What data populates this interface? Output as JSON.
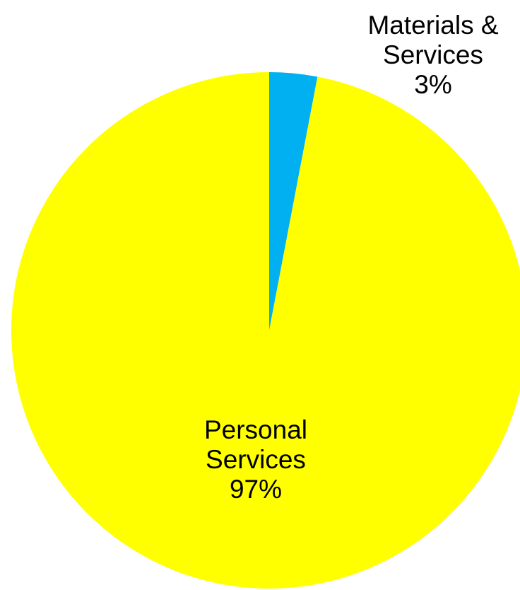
{
  "chart_data": {
    "type": "pie",
    "slices": [
      {
        "name": "Personal Services",
        "label_lines": [
          "Personal",
          "Services",
          "97%"
        ],
        "value": 97,
        "color": "#FFFF00"
      },
      {
        "name": "Materials & Services",
        "label_lines": [
          "Materials &",
          "Services",
          "3%"
        ],
        "value": 3,
        "color": "#00B0F0"
      }
    ],
    "start_angle_deg": 0,
    "direction": "clockwise",
    "legend": "none"
  }
}
